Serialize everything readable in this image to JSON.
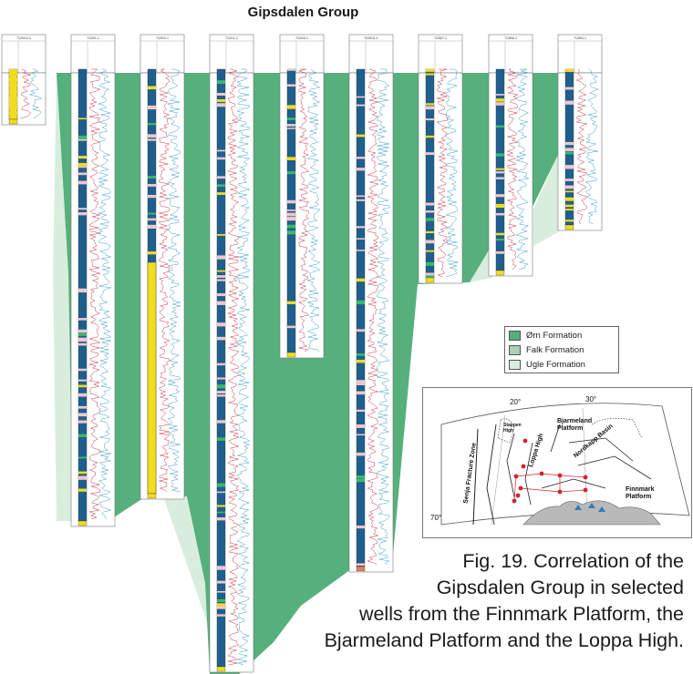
{
  "title": "Gipsdalen Group",
  "wells": [
    {
      "name": "7120/12-4"
    },
    {
      "name": "7120/1-1"
    },
    {
      "name": "7120/2-1"
    },
    {
      "name": "7121/1-1"
    },
    {
      "name": "7124/3-1"
    },
    {
      "name": "7226/11-1"
    },
    {
      "name": "7228/7-1"
    },
    {
      "name": "7128/6-1"
    },
    {
      "name": "7128/4-1"
    }
  ],
  "legend": {
    "items": [
      {
        "label": "Ørn Formation",
        "color": "#55b07c"
      },
      {
        "label": "Falk Formation",
        "color": "#a7d2b4"
      },
      {
        "label": "Ugle Formation",
        "color": "#d9eddd"
      }
    ]
  },
  "map": {
    "lon_labels": [
      "20°",
      "30°"
    ],
    "lat_label": "70°",
    "areas": {
      "bjarmeland": "Bjarmeland Platform",
      "loppa": "Loppa High",
      "nordkapp": "Nordkapp Basin",
      "finnmark": "Finnmark Platform",
      "senja": "Senja Fracture Zone",
      "stappen": "Stappen High"
    }
  },
  "caption": {
    "line1": "Fig. 19. Correlation of the",
    "line2": "Gipsdalen Group in selected",
    "line3": "wells from the Finnmark Platform, the",
    "line4": "Bjarmeland Platform and the Loppa High."
  },
  "colors": {
    "orn": "#55b07c",
    "falk": "#a7d2b4",
    "ugle": "#d9eddd",
    "carbonate": "#1f5f8e",
    "sand": "#f2dc1e",
    "anhydrite": "#f2c6cc",
    "log_red": "#cc3344",
    "log_blue": "#3a9ec8"
  }
}
